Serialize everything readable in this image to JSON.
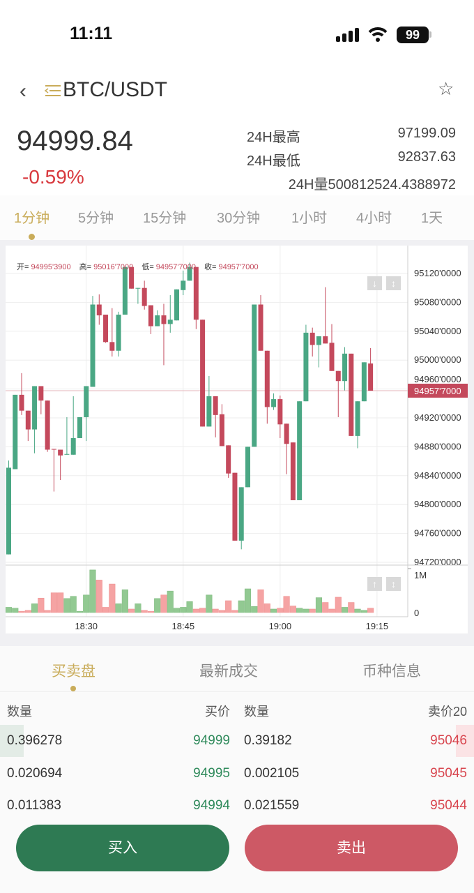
{
  "status_bar": {
    "time": "11:11",
    "battery": "99"
  },
  "header": {
    "pair": "BTC/USDT"
  },
  "ticker": {
    "price": "94999.84",
    "change": "-0.59%",
    "high_label": "24H最高",
    "high": "97199.09",
    "low_label": "24H最低",
    "low": "92837.63",
    "vol_label": "24H量",
    "vol": "500812524.4388972"
  },
  "timeframes": [
    {
      "label": "1分钟",
      "active": true
    },
    {
      "label": "5分钟"
    },
    {
      "label": "15分钟"
    },
    {
      "label": "30分钟"
    },
    {
      "label": "1小时"
    },
    {
      "label": "4小时"
    },
    {
      "label": "1天"
    }
  ],
  "colors": {
    "up": "#4aa784",
    "down": "#c4495c",
    "vol_up": "#92c992",
    "vol_down": "#f5a3a3",
    "accent": "#c9ac5a",
    "buy": "#2e7a53",
    "sell": "#cd5965"
  },
  "chart_data": {
    "type": "candlestick",
    "ohlc_header": {
      "open_label": "开=",
      "open": "94995'3900",
      "high_label": "高=",
      "high": "95016'7000",
      "low_label": "低=",
      "low": "94957'7000",
      "close_label": "收=",
      "close": "94957'7000"
    },
    "y_ticks": [
      "95120'0000",
      "95080'0000",
      "95040'0000",
      "95000'0000",
      "94960'0000",
      "94920'0000",
      "94880'0000",
      "94840'0000",
      "94800'0000",
      "94760'0000",
      "94720'0000"
    ],
    "y_tick_values": [
      95120,
      95080,
      95040,
      95000,
      94960,
      94920,
      94880,
      94840,
      94800,
      94760,
      94720
    ],
    "current_price_label": "94957'7000",
    "current_price": 94957.7,
    "vol_ticks": [
      "1M",
      "0"
    ],
    "x_ticks": [
      "18:30",
      "18:45",
      "19:00",
      "19:15"
    ],
    "x_tick_index": [
      12,
      27,
      42,
      57
    ],
    "candles": [
      [
        94731,
        94861,
        94731,
        94851
      ],
      [
        94849,
        94952,
        94849,
        94952
      ],
      [
        94952,
        94982,
        94924,
        94930
      ],
      [
        94930,
        94930,
        94888,
        94904
      ],
      [
        94904,
        94964,
        94871,
        94964
      ],
      [
        94964,
        94964,
        94925,
        94944
      ],
      [
        94944,
        94944,
        94873,
        94876
      ],
      [
        94877,
        94877,
        94818,
        94876
      ],
      [
        94876,
        94876,
        94834,
        94868
      ],
      [
        94869,
        94921,
        94869,
        94870
      ],
      [
        94869,
        94950,
        94869,
        94892
      ],
      [
        94892,
        94921,
        94892,
        94921
      ],
      [
        94921,
        94964,
        94888,
        94964
      ],
      [
        94963,
        95089,
        94963,
        95077
      ],
      [
        95077,
        95091,
        95049,
        95062
      ],
      [
        95063,
        95063,
        95024,
        95025
      ],
      [
        95025,
        95072,
        95005,
        95013
      ],
      [
        95013,
        95067,
        95005,
        95063
      ],
      [
        95063,
        95129,
        95063,
        95129
      ],
      [
        95129,
        95129,
        95099,
        95099
      ],
      [
        95099,
        95100,
        95078,
        95100
      ],
      [
        95100,
        95110,
        95070,
        95075
      ],
      [
        95076,
        95076,
        95036,
        95047
      ],
      [
        95047,
        95069,
        95047,
        95062
      ],
      [
        95062,
        95078,
        94993,
        95050
      ],
      [
        95050,
        95090,
        95038,
        95056
      ],
      [
        95055,
        95098,
        95055,
        95098
      ],
      [
        95097,
        95124,
        95090,
        95110
      ],
      [
        95110,
        95135,
        95110,
        95129
      ],
      [
        95129,
        95129,
        95043,
        95056
      ],
      [
        95056,
        95056,
        94908,
        94908
      ],
      [
        94908,
        94978,
        94908,
        94950
      ],
      [
        94950,
        94950,
        94893,
        94924
      ],
      [
        94925,
        94939,
        94881,
        94881
      ],
      [
        94882,
        94882,
        94837,
        94843
      ],
      [
        94844,
        94844,
        94750,
        94750
      ],
      [
        94750,
        94824,
        94738,
        94824
      ],
      [
        94824,
        94880,
        94824,
        94880
      ],
      [
        94880,
        95077,
        94880,
        95077
      ],
      [
        95077,
        95090,
        95013,
        95013
      ],
      [
        95013,
        95013,
        94912,
        94935
      ],
      [
        94935,
        94954,
        94931,
        94946
      ],
      [
        94946,
        94951,
        94892,
        94911
      ],
      [
        94912,
        94912,
        94842,
        94884
      ],
      [
        94886,
        94886,
        94806,
        94806
      ],
      [
        94806,
        94943,
        94806,
        94943
      ],
      [
        94943,
        95049,
        94943,
        95038
      ],
      [
        95038,
        95045,
        95005,
        95021
      ],
      [
        95021,
        95033,
        94990,
        95033
      ],
      [
        95033,
        95101,
        95023,
        95023
      ],
      [
        95024,
        95050,
        94985,
        94985
      ],
      [
        94985,
        94985,
        94921,
        94971
      ],
      [
        94971,
        95018,
        94958,
        95009
      ],
      [
        95009,
        95009,
        94895,
        94895
      ],
      [
        94895,
        94943,
        94878,
        94943
      ],
      [
        94943,
        94997,
        94943,
        94997
      ],
      [
        94995.39,
        95016.7,
        94957.7,
        94957.7
      ]
    ],
    "volume_millions": [
      0.12,
      0.1,
      0.03,
      0.05,
      0.2,
      0.33,
      0.05,
      0.45,
      0.45,
      0.32,
      0.37,
      0.03,
      0.4,
      0.97,
      0.74,
      0.12,
      0.65,
      0.2,
      0.52,
      0.08,
      0.2,
      0.05,
      0.03,
      0.32,
      0.4,
      0.49,
      0.1,
      0.12,
      0.25,
      0.08,
      0.1,
      0.4,
      0.08,
      0.05,
      0.27,
      0.05,
      0.27,
      0.54,
      0.14,
      0.52,
      0.2,
      0.08,
      0.1,
      0.37,
      0.15,
      0.1,
      0.08,
      0.08,
      0.34,
      0.23,
      0.08,
      0.35,
      0.12,
      0.23,
      0.08,
      0.05,
      0.1
    ]
  },
  "bottom_tabs": [
    {
      "label": "买卖盘",
      "active": true
    },
    {
      "label": "最新成交"
    },
    {
      "label": "币种信息"
    }
  ],
  "orderbook": {
    "headers": {
      "bid_qty": "数量",
      "bid_price": "买价",
      "ask_qty": "数量",
      "ask_price": "卖价20"
    },
    "rows": [
      {
        "bid_qty": "0.396278",
        "bid_price": "94999",
        "ask_qty": "0.39182",
        "ask_price": "95046",
        "bid_depth": 0.05,
        "ask_depth": 0.05
      },
      {
        "bid_qty": "0.020694",
        "bid_price": "94995",
        "ask_qty": "0.002105",
        "ask_price": "95045"
      },
      {
        "bid_qty": "0.011383",
        "bid_price": "94994",
        "ask_qty": "0.021559",
        "ask_price": "95044"
      }
    ]
  },
  "actions": {
    "buy": "买入",
    "sell": "卖出"
  }
}
